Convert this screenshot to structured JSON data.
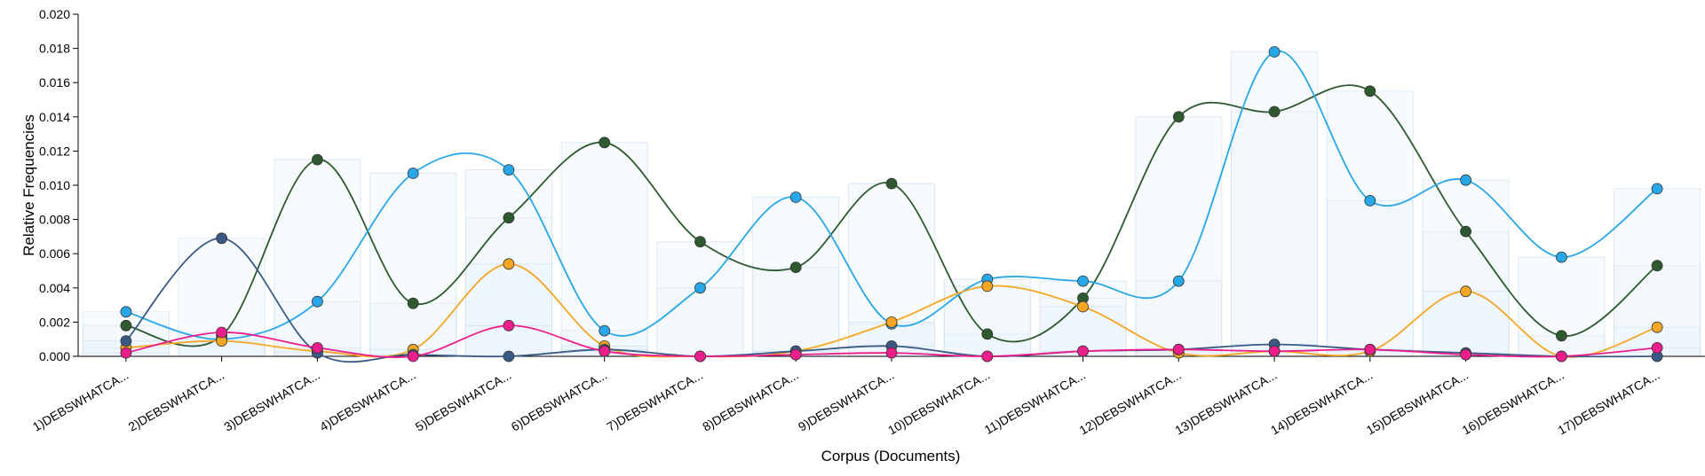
{
  "chart_data": {
    "type": "line",
    "title": "",
    "xlabel": "Corpus (Documents)",
    "ylabel": "Relative Frequencies",
    "ylim": [
      0,
      0.02
    ],
    "yticks": [
      "0.000",
      "0.002",
      "0.004",
      "0.006",
      "0.008",
      "0.010",
      "0.012",
      "0.014",
      "0.016",
      "0.018",
      "0.020"
    ],
    "yticks_values": [
      0,
      0.002,
      0.004,
      0.006,
      0.008,
      0.01,
      0.012,
      0.014,
      0.016,
      0.018,
      0.02
    ],
    "categories": [
      "1)DEBSWHATCA...",
      "2)DEBSWHATCA...",
      "3)DEBSWHATCA...",
      "4)DEBSWHATCA...",
      "5)DEBSWHATCA...",
      "6)DEBSWHATCA...",
      "7)DEBSWHATCA...",
      "8)DEBSWHATCA...",
      "9)DEBSWHATCA...",
      "10)DEBSWHATCA...",
      "11)DEBSWHATCA...",
      "12)DEBSWHATCA...",
      "13)DEBSWHATCA...",
      "14)DEBSWHATCA...",
      "15)DEBSWHATCA...",
      "16)DEBSWHATCA...",
      "17)DEBSWHATCA..."
    ],
    "grid": false,
    "legend": "none",
    "series": [
      {
        "color": "#2f5a2f",
        "values": [
          0.0018,
          0.0012,
          0.0115,
          0.0031,
          0.0081,
          0.0125,
          0.0067,
          0.0052,
          0.0101,
          0.0013,
          0.0034,
          0.014,
          0.0143,
          0.0155,
          0.0073,
          0.0012,
          0.0053
        ]
      },
      {
        "color": "#27a7e8",
        "values": [
          0.0026,
          0.001,
          0.0032,
          0.0107,
          0.0109,
          0.0015,
          0.004,
          0.0093,
          0.0019,
          0.0045,
          0.0044,
          0.0044,
          0.0178,
          0.0091,
          0.0103,
          0.0058,
          0.0098
        ]
      },
      {
        "color": "#f5a623",
        "values": [
          0.0005,
          0.0009,
          0.0003,
          0.0004,
          0.0054,
          0.0006,
          0.0,
          0.0003,
          0.002,
          0.0041,
          0.0029,
          0.0002,
          0.0003,
          0.0003,
          0.0038,
          0.0,
          0.0017
        ]
      },
      {
        "color": "#3a5a85",
        "values": [
          0.0009,
          0.0069,
          0.0002,
          0.0001,
          0.0,
          0.0004,
          0.0,
          0.0003,
          0.0006,
          0.0,
          0.0003,
          0.0004,
          0.0007,
          0.0004,
          0.0002,
          0.0,
          0.0
        ]
      },
      {
        "color": "#ec1e8c",
        "values": [
          0.0002,
          0.0014,
          0.0005,
          0.0,
          0.0018,
          0.0003,
          0.0,
          0.0001,
          0.0002,
          0.0,
          0.0003,
          0.0004,
          0.0003,
          0.0004,
          0.0001,
          0.0,
          0.0005
        ]
      }
    ]
  }
}
